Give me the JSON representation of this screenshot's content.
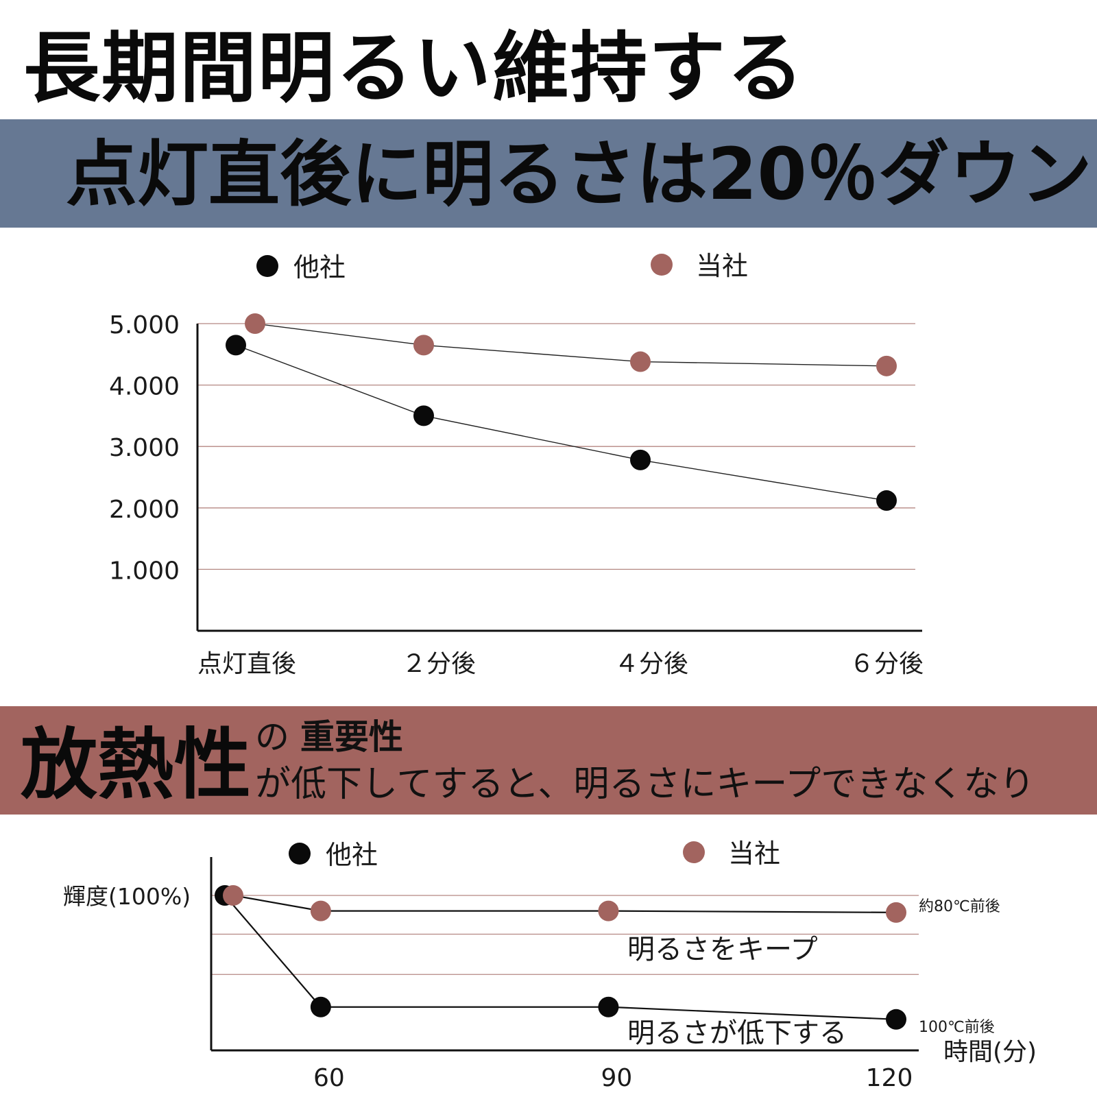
{
  "header": {
    "title": "長期間明るい維持する",
    "subtitle": "点灯直後に明るさは20％ダウン"
  },
  "section2": {
    "title_big": "放熱性",
    "title_small_prefix": "の",
    "title_small_bold": "重要性",
    "description": "が低下してすると、明るさにキープできなくなり"
  },
  "colors": {
    "other": "#0a0a0a",
    "ours": "#a2645f",
    "band_blue": "#667893",
    "band_red": "#a2645f",
    "gridline": "#b48782"
  },
  "chart_data": [
    {
      "type": "line",
      "categories": [
        "点灯直後",
        "２分後",
        "４分後",
        "６分後"
      ],
      "y_ticks": [
        "5.000",
        "4.000",
        "3.000",
        "2.000",
        "1.000"
      ],
      "ylim": [
        0,
        5000
      ],
      "grid": true,
      "legend_position": "top",
      "series": [
        {
          "name": "他社",
          "color": "#0a0a0a",
          "values": [
            4650,
            3500,
            2780,
            2120
          ]
        },
        {
          "name": "当社",
          "color": "#a2645f",
          "values": [
            5000,
            4650,
            4380,
            4310
          ]
        }
      ]
    },
    {
      "type": "line",
      "x_ticks": [
        "60",
        "90",
        "120"
      ],
      "x": [
        50,
        60,
        90,
        120
      ],
      "xlim": [
        48,
        122
      ],
      "ylim": [
        0,
        100
      ],
      "ylabel": "輝度(100%)",
      "xlabel": "時間(分)",
      "grid": true,
      "legend_position": "top",
      "series": [
        {
          "name": "他社",
          "color": "#0a0a0a",
          "values": [
            100,
            28,
            28,
            20
          ],
          "end_label": "100℃前後"
        },
        {
          "name": "当社",
          "color": "#a2645f",
          "values": [
            100,
            90,
            90,
            89
          ],
          "end_label": "約80℃前後"
        }
      ],
      "annotations": [
        "明るさをキープ",
        "明るさが低下する"
      ]
    }
  ]
}
